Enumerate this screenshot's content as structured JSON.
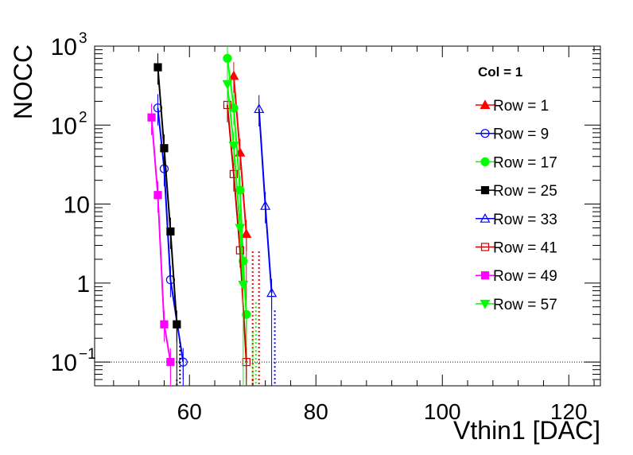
{
  "chart_data": {
    "type": "scatter",
    "xlabel": "Vthin1 [DAC]",
    "ylabel": "NOCC",
    "xlim": [
      45,
      125
    ],
    "ylim": [
      0.05,
      1000
    ],
    "yscale": "log",
    "grid": false,
    "x_ticks": [
      60,
      80,
      100,
      120
    ],
    "x_tick_labels": [
      "60",
      "80",
      "100",
      "120"
    ],
    "y_ticks": [
      0.1,
      1,
      10,
      100,
      1000
    ],
    "y_tick_labels": [
      {
        "base": "10",
        "exp": "−1"
      },
      {
        "base": "1",
        "exp": ""
      },
      {
        "base": "10",
        "exp": ""
      },
      {
        "base": "10",
        "exp": "2"
      },
      {
        "base": "10",
        "exp": "3"
      }
    ],
    "reference_line": {
      "y": 0.1,
      "style": "dotted"
    },
    "legend": {
      "title": "Col = 1",
      "placement": "top-right"
    },
    "series": [
      {
        "name": "Row = 1",
        "color": "#ff0000",
        "marker": "triangle-up",
        "filled": true,
        "points": [
          [
            67,
            420
          ],
          [
            68,
            45
          ],
          [
            69,
            4.2
          ]
        ],
        "tail_x": [
          70,
          71
        ]
      },
      {
        "name": "Row = 9",
        "color": "#0000ff",
        "marker": "circle",
        "filled": false,
        "points": [
          [
            55,
            165
          ],
          [
            56,
            28
          ],
          [
            57,
            1.1
          ],
          [
            59,
            0.1
          ]
        ],
        "tail_x": [
          58
        ]
      },
      {
        "name": "Row = 17",
        "color": "#00ff00",
        "marker": "circle",
        "filled": true,
        "points": [
          [
            66,
            700
          ],
          [
            67,
            165
          ],
          [
            68,
            15
          ],
          [
            68.5,
            1.9
          ],
          [
            69,
            0.4
          ]
        ],
        "tail_x": [
          70
        ]
      },
      {
        "name": "Row = 25",
        "color": "#000000",
        "marker": "square",
        "filled": true,
        "points": [
          [
            55,
            540
          ],
          [
            56,
            51
          ],
          [
            57,
            4.5
          ],
          [
            58,
            0.3
          ]
        ],
        "tail_x": [
          58.5
        ]
      },
      {
        "name": "Row = 33",
        "color": "#0000ff",
        "marker": "triangle-up",
        "filled": false,
        "points": [
          [
            71,
            160
          ],
          [
            72,
            9.5
          ],
          [
            73,
            0.75
          ]
        ],
        "tail_x": [
          73.5
        ]
      },
      {
        "name": "Row = 41",
        "color": "#cc0000",
        "marker": "square",
        "filled": false,
        "points": [
          [
            66,
            180
          ],
          [
            67,
            24
          ],
          [
            68,
            2.6
          ],
          [
            69,
            0.1
          ]
        ],
        "tail_x": [
          70
        ]
      },
      {
        "name": "Row = 49",
        "color": "#ff00ff",
        "marker": "square",
        "filled": true,
        "points": [
          [
            54,
            125
          ],
          [
            55,
            13
          ],
          [
            56,
            0.3
          ],
          [
            57,
            0.1
          ]
        ],
        "tail_x": []
      },
      {
        "name": "Row = 57",
        "color": "#00ff00",
        "marker": "triangle-down",
        "filled": true,
        "points": [
          [
            66,
            330
          ],
          [
            67,
            55
          ],
          [
            68,
            5
          ],
          [
            68.5,
            0.95
          ]
        ],
        "tail_x": [
          70.5
        ]
      }
    ]
  }
}
